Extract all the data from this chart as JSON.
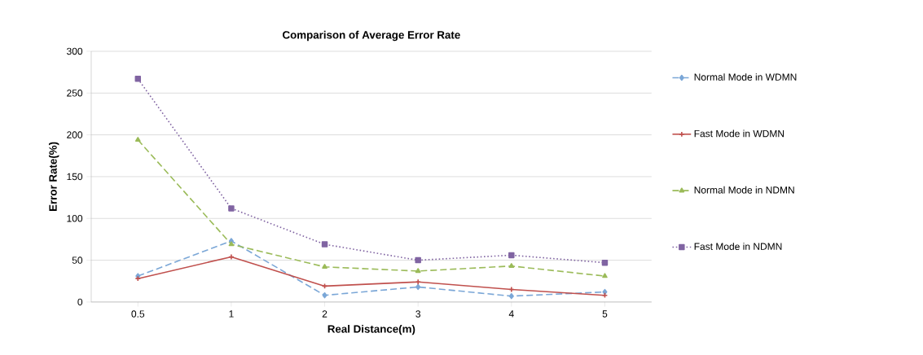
{
  "chart_data": {
    "type": "line",
    "title": "Comparison of Average Error Rate",
    "xlabel": "Real Distance(m)",
    "ylabel": "Error Rate(%)",
    "categories": [
      "0.5",
      "1",
      "2",
      "3",
      "4",
      "5"
    ],
    "ylim": [
      0,
      300
    ],
    "yticks": [
      0,
      50,
      100,
      150,
      200,
      250,
      300
    ],
    "grid": "y",
    "legend": "right",
    "series": [
      {
        "name": "Normal Mode in WDMN",
        "color": "#7ba7d7",
        "marker": "diamond",
        "line_style": "dashed",
        "values": [
          31,
          73,
          8,
          18,
          7,
          12
        ]
      },
      {
        "name": "Fast Mode in WDMN",
        "color": "#c0504d",
        "marker": "cross",
        "line_style": "solid",
        "values": [
          28,
          54,
          19,
          24,
          15,
          8
        ]
      },
      {
        "name": "Normal Mode in NDMN",
        "color": "#9bbb59",
        "marker": "triangle",
        "line_style": "dashed",
        "values": [
          194,
          69,
          42,
          37,
          43,
          31
        ]
      },
      {
        "name": "Fast Mode in NDMN",
        "color": "#8064a2",
        "marker": "square",
        "line_style": "dotted",
        "values": [
          267,
          112,
          69,
          50,
          56,
          47
        ]
      }
    ]
  }
}
